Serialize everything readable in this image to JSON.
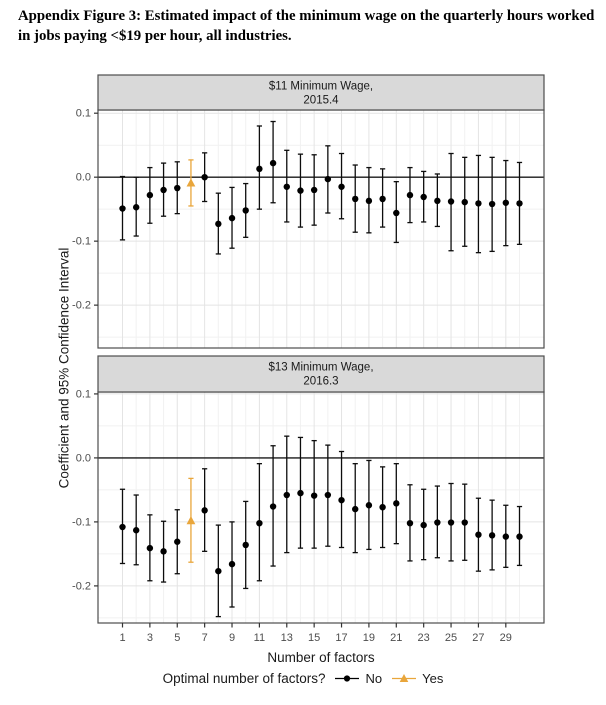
{
  "page": {
    "title_line1": "Appendix Figure 3: Estimated impact of the minimum wage on the quarterly hours worked",
    "title_line2": "in jobs paying <$19 per hour, all industries."
  },
  "figure": {
    "y_axis_title": "Coefficient and 95% Confidence Interval",
    "x_axis_title": "Number of factors",
    "legend": {
      "title": "Optimal number of factors?",
      "items": [
        {
          "label": "No",
          "color": "#000000",
          "marker": "circle"
        },
        {
          "label": "Yes",
          "color": "#E9A63B",
          "marker": "triangle"
        }
      ]
    },
    "colors": {
      "strip_bg": "#d9d9d9",
      "strip_border": "#4d4d4d",
      "panel_border": "#4d4d4d",
      "grid_major": "#e4e4e4",
      "grid_minor": "#f1f1f1",
      "zero_line": "#1a1a1a",
      "bar_black": "#0d0d0d",
      "point_black": "#000000",
      "point_orange": "#E9A63B",
      "tick_mark": "#333333",
      "tick_text": "#4d4d4d",
      "strip_text": "#1a1a1a"
    }
  },
  "chart_data": [
    {
      "type": "pointrange",
      "strip_lines": [
        "$11 Minimum Wage,",
        "2015.4"
      ],
      "xlabel": "Number of factors",
      "ylabel": "Coefficient and 95% Confidence Interval",
      "ylim": [
        -0.267,
        0.105
      ],
      "yticks": {
        "values": [
          0.1,
          0.0,
          -0.1,
          -0.2
        ],
        "labels": [
          "0.1",
          "0.0",
          "-0.1",
          "-0.2"
        ]
      },
      "yminor": [
        0.05,
        -0.05,
        -0.15,
        -0.25
      ],
      "optimal_x": 6,
      "points": [
        [
          1,
          -0.049,
          -0.098,
          0.001
        ],
        [
          2,
          -0.047,
          -0.092,
          0.0
        ],
        [
          3,
          -0.028,
          -0.072,
          0.015
        ],
        [
          4,
          -0.02,
          -0.061,
          0.022
        ],
        [
          5,
          -0.017,
          -0.057,
          0.024
        ],
        [
          6,
          -0.009,
          -0.045,
          0.027
        ],
        [
          7,
          0.0,
          -0.038,
          0.038
        ],
        [
          8,
          -0.073,
          -0.12,
          -0.025
        ],
        [
          9,
          -0.064,
          -0.111,
          -0.016
        ],
        [
          10,
          -0.052,
          -0.094,
          -0.01
        ],
        [
          11,
          0.013,
          -0.05,
          0.08
        ],
        [
          12,
          0.022,
          -0.04,
          0.087
        ],
        [
          13,
          -0.015,
          -0.07,
          0.042
        ],
        [
          14,
          -0.021,
          -0.078,
          0.036
        ],
        [
          15,
          -0.02,
          -0.075,
          0.035
        ],
        [
          16,
          -0.003,
          -0.056,
          0.049
        ],
        [
          17,
          -0.015,
          -0.065,
          0.037
        ],
        [
          18,
          -0.034,
          -0.086,
          0.019
        ],
        [
          19,
          -0.037,
          -0.087,
          0.015
        ],
        [
          20,
          -0.034,
          -0.078,
          0.013
        ],
        [
          21,
          -0.056,
          -0.102,
          -0.007
        ],
        [
          22,
          -0.028,
          -0.071,
          0.015
        ],
        [
          23,
          -0.031,
          -0.07,
          0.009
        ],
        [
          24,
          -0.037,
          -0.077,
          0.005
        ],
        [
          25,
          -0.038,
          -0.115,
          0.037
        ],
        [
          26,
          -0.039,
          -0.108,
          0.031
        ],
        [
          27,
          -0.041,
          -0.118,
          0.034
        ],
        [
          28,
          -0.042,
          -0.116,
          0.031
        ],
        [
          29,
          -0.04,
          -0.107,
          0.026
        ],
        [
          30,
          -0.041,
          -0.105,
          0.023
        ]
      ]
    },
    {
      "type": "pointrange",
      "strip_lines": [
        "$13 Minimum Wage,",
        "2016.3"
      ],
      "xlabel": "Number of factors",
      "ylabel": "Coefficient and 95% Confidence Interval",
      "ylim": [
        -0.258,
        0.103
      ],
      "yticks": {
        "values": [
          0.1,
          0.0,
          -0.1,
          -0.2
        ],
        "labels": [
          "0.1",
          "0.0",
          "-0.1",
          "-0.2"
        ]
      },
      "yminor": [
        0.05,
        -0.05,
        -0.15,
        -0.25
      ],
      "optimal_x": 6,
      "xticks": {
        "values": [
          1,
          3,
          5,
          7,
          9,
          11,
          13,
          15,
          17,
          19,
          21,
          23,
          25,
          27,
          29
        ],
        "labels": [
          "1",
          "3",
          "5",
          "7",
          "9",
          "11",
          "13",
          "15",
          "17",
          "19",
          "21",
          "23",
          "25",
          "27",
          "29"
        ]
      },
      "points": [
        [
          1,
          -0.108,
          -0.165,
          -0.049
        ],
        [
          2,
          -0.113,
          -0.167,
          -0.058
        ],
        [
          3,
          -0.141,
          -0.192,
          -0.089
        ],
        [
          4,
          -0.146,
          -0.194,
          -0.099
        ],
        [
          5,
          -0.131,
          -0.181,
          -0.081
        ],
        [
          6,
          -0.098,
          -0.163,
          -0.032
        ],
        [
          7,
          -0.082,
          -0.146,
          -0.017
        ],
        [
          8,
          -0.177,
          -0.248,
          -0.105
        ],
        [
          9,
          -0.166,
          -0.233,
          -0.1
        ],
        [
          10,
          -0.136,
          -0.204,
          -0.068
        ],
        [
          11,
          -0.102,
          -0.192,
          -0.009
        ],
        [
          12,
          -0.076,
          -0.169,
          0.019
        ],
        [
          13,
          -0.058,
          -0.148,
          0.034
        ],
        [
          14,
          -0.055,
          -0.141,
          0.032
        ],
        [
          15,
          -0.059,
          -0.141,
          0.027
        ],
        [
          16,
          -0.058,
          -0.138,
          0.02
        ],
        [
          17,
          -0.066,
          -0.14,
          0.01
        ],
        [
          18,
          -0.08,
          -0.148,
          -0.009
        ],
        [
          19,
          -0.074,
          -0.143,
          -0.004
        ],
        [
          20,
          -0.077,
          -0.14,
          -0.014
        ],
        [
          21,
          -0.071,
          -0.134,
          -0.009
        ],
        [
          22,
          -0.102,
          -0.161,
          -0.042
        ],
        [
          23,
          -0.105,
          -0.159,
          -0.049
        ],
        [
          24,
          -0.101,
          -0.156,
          -0.044
        ],
        [
          25,
          -0.101,
          -0.161,
          -0.04
        ],
        [
          26,
          -0.101,
          -0.16,
          -0.041
        ],
        [
          27,
          -0.12,
          -0.177,
          -0.063
        ],
        [
          28,
          -0.121,
          -0.175,
          -0.066
        ],
        [
          29,
          -0.123,
          -0.171,
          -0.074
        ],
        [
          30,
          -0.123,
          -0.168,
          -0.076
        ]
      ]
    }
  ]
}
